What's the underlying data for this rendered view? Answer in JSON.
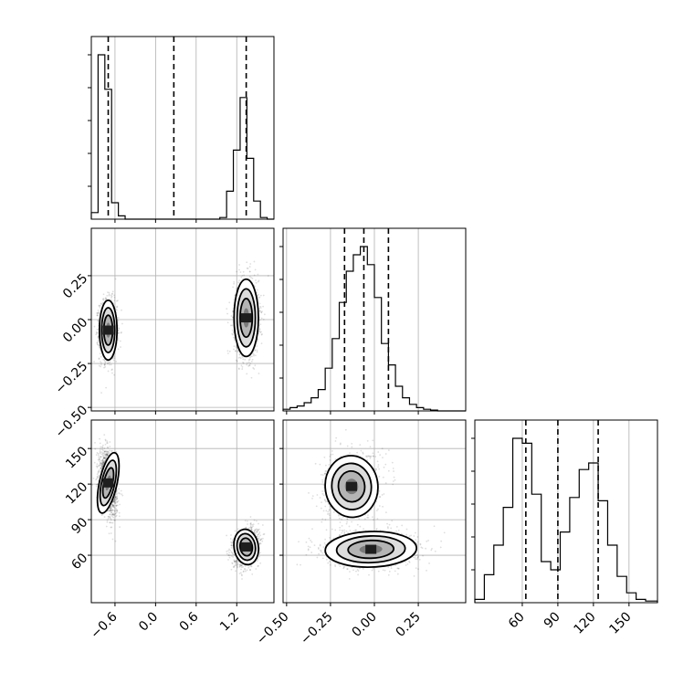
{
  "chart_data": {
    "type": "corner",
    "grid": true,
    "histogram_style": "step",
    "quantile_line_style": "dashed",
    "parameters": [
      {
        "range": [
          -0.95,
          1.75
        ],
        "ticks": [
          {
            "value": -0.6,
            "label": "−0.6"
          },
          {
            "value": 0.0,
            "label": "0.0"
          },
          {
            "value": 0.6,
            "label": "0.6"
          },
          {
            "value": 1.2,
            "label": "1.2"
          }
        ],
        "quantiles": [
          -0.7,
          0.27,
          1.34
        ],
        "histogram": {
          "bin_edges": [
            -0.95,
            -0.85,
            -0.75,
            -0.65,
            -0.55,
            -0.45,
            -0.35,
            0.95,
            1.05,
            1.15,
            1.25,
            1.35,
            1.45,
            1.55,
            1.65,
            1.75
          ],
          "counts": [
            0.04,
            1.0,
            0.79,
            0.1,
            0.02,
            0,
            0,
            0.01,
            0.17,
            0.42,
            0.74,
            0.37,
            0.11,
            0.01,
            0
          ]
        }
      },
      {
        "range": [
          -0.52,
          0.52
        ],
        "ticks": [
          {
            "value": -0.5,
            "label": "−0.50"
          },
          {
            "value": -0.25,
            "label": "−0.25"
          },
          {
            "value": 0.0,
            "label": "0.00"
          },
          {
            "value": 0.25,
            "label": "0.25"
          }
        ],
        "quantiles": [
          -0.17,
          -0.06,
          0.08
        ],
        "histogram": {
          "bin_edges": [
            -0.52,
            -0.48,
            -0.44,
            -0.4,
            -0.36,
            -0.32,
            -0.28,
            -0.24,
            -0.2,
            -0.16,
            -0.12,
            -0.08,
            -0.04,
            0.0,
            0.04,
            0.08,
            0.12,
            0.16,
            0.2,
            0.24,
            0.28,
            0.32,
            0.36,
            0.4,
            0.44,
            0.48,
            0.52
          ],
          "counts": [
            0.01,
            0.02,
            0.03,
            0.05,
            0.08,
            0.13,
            0.26,
            0.44,
            0.66,
            0.85,
            0.95,
            1.0,
            0.89,
            0.69,
            0.41,
            0.28,
            0.15,
            0.08,
            0.04,
            0.02,
            0.01,
            0.005,
            0,
            0,
            0,
            0
          ]
        }
      },
      {
        "range": [
          20,
          174
        ],
        "ticks": [
          {
            "value": 60,
            "label": "60"
          },
          {
            "value": 90,
            "label": "90"
          },
          {
            "value": 120,
            "label": "120"
          },
          {
            "value": 150,
            "label": "150"
          }
        ],
        "quantiles": [
          63,
          90,
          124
        ],
        "histogram": {
          "bin_edges": [
            20,
            28,
            36,
            44,
            52,
            60,
            68,
            76,
            84,
            92,
            100,
            108,
            116,
            124,
            132,
            140,
            148,
            156,
            164,
            174
          ],
          "counts": [
            0.02,
            0.17,
            0.35,
            0.58,
            1.0,
            0.97,
            0.66,
            0.25,
            0.2,
            0.43,
            0.64,
            0.81,
            0.85,
            0.62,
            0.35,
            0.16,
            0.06,
            0.02,
            0.01
          ]
        }
      }
    ],
    "pairs": [
      {
        "x_param": 0,
        "y_param": 1,
        "clusters": [
          {
            "cx": -0.7,
            "cy": -0.06,
            "sx": 0.065,
            "sy": 0.085,
            "rho": 0.0,
            "weight": 0.5
          },
          {
            "cx": 1.34,
            "cy": 0.01,
            "sx": 0.09,
            "sy": 0.11,
            "rho": 0.0,
            "weight": 0.5
          }
        ]
      },
      {
        "x_param": 0,
        "y_param": 2,
        "clusters": [
          {
            "cx": -0.7,
            "cy": 121,
            "sx": 0.065,
            "sy": 13,
            "rho": -0.35,
            "weight": 0.5
          },
          {
            "cx": 1.34,
            "cy": 67,
            "sx": 0.09,
            "sy": 7.5,
            "rho": 0.25,
            "weight": 0.5
          }
        ]
      },
      {
        "x_param": 1,
        "y_param": 2,
        "clusters": [
          {
            "cx": -0.13,
            "cy": 118,
            "sx": 0.075,
            "sy": 13,
            "rho": 0.15,
            "weight": 0.5
          },
          {
            "cx": -0.02,
            "cy": 65,
            "sx": 0.13,
            "sy": 7.5,
            "rho": 0.05,
            "weight": 0.5
          }
        ]
      }
    ]
  }
}
